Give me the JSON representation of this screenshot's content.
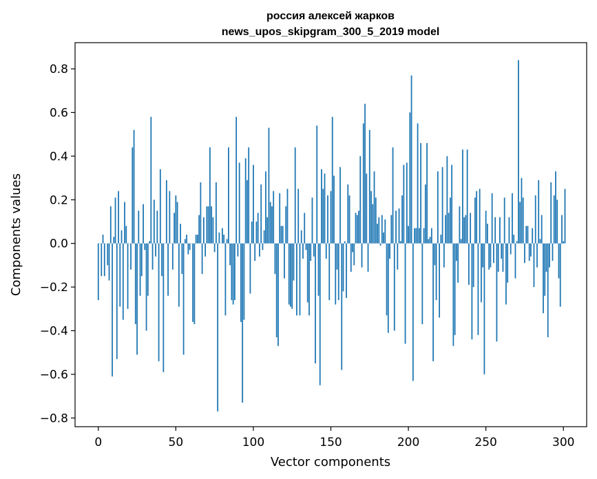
{
  "chart_data": {
    "type": "bar",
    "title_line1": "россия алексей жарков",
    "title_line2": "news_upos_skipgram_300_5_2019 model",
    "xlabel": "Vector components",
    "ylabel": "Components values",
    "xlim": [
      -15,
      315
    ],
    "ylim": [
      -0.84,
      0.92
    ],
    "xticks": [
      0,
      50,
      100,
      150,
      200,
      250,
      300
    ],
    "xtick_labels": [
      "0",
      "50",
      "100",
      "150",
      "200",
      "250",
      "300"
    ],
    "yticks": [
      -0.8,
      -0.6,
      -0.4,
      -0.2,
      0.0,
      0.2,
      0.4,
      0.6,
      0.8
    ],
    "ytick_labels": [
      "−0.8",
      "−0.6",
      "−0.4",
      "−0.2",
      "0.0",
      "0.2",
      "0.4",
      "0.6",
      "0.8"
    ],
    "bar_color": "#1f77b4",
    "values": [
      -0.26,
      0.0,
      -0.15,
      0.04,
      -0.15,
      0.0,
      -0.1,
      -0.17,
      0.17,
      -0.61,
      0.03,
      0.21,
      -0.53,
      0.24,
      -0.29,
      0.06,
      -0.35,
      0.19,
      0.08,
      -0.3,
      0.0,
      -0.12,
      0.44,
      0.52,
      -0.37,
      -0.51,
      0.15,
      -0.24,
      -0.15,
      0.18,
      -0.03,
      -0.4,
      -0.24,
      0.01,
      0.58,
      -0.12,
      0.2,
      -0.06,
      0.15,
      -0.54,
      0.34,
      -0.15,
      -0.59,
      0.0,
      0.29,
      -0.24,
      0.24,
      0.0,
      -0.12,
      0.14,
      0.22,
      0.19,
      -0.29,
      0.09,
      -0.14,
      -0.51,
      0.02,
      0.04,
      -0.05,
      -0.03,
      0.0,
      -0.36,
      -0.37,
      0.04,
      0.04,
      0.13,
      0.28,
      -0.14,
      0.12,
      -0.06,
      0.17,
      0.17,
      0.44,
      0.17,
      0.12,
      -0.04,
      0.28,
      -0.77,
      0.05,
      0.0,
      0.07,
      0.04,
      -0.33,
      0.02,
      0.44,
      -0.1,
      -0.26,
      -0.28,
      -0.26,
      0.58,
      -0.06,
      0.37,
      -0.36,
      -0.73,
      -0.35,
      0.39,
      0.29,
      0.44,
      -0.23,
      0.1,
      0.36,
      -0.08,
      0.1,
      0.14,
      -0.06,
      0.27,
      -0.03,
      0.06,
      0.33,
      0.12,
      0.53,
      0.19,
      0.17,
      0.24,
      -0.14,
      -0.43,
      -0.47,
      0.23,
      0.08,
      0.08,
      -0.16,
      0.17,
      0.25,
      -0.28,
      -0.29,
      -0.3,
      -0.17,
      0.44,
      -0.33,
      0.25,
      -0.33,
      0.06,
      -0.07,
      0.14,
      -0.03,
      -0.27,
      -0.33,
      -0.08,
      0.21,
      -0.06,
      -0.55,
      0.54,
      -0.24,
      -0.65,
      0.34,
      0.25,
      0.32,
      -0.07,
      0.22,
      -0.26,
      0.24,
      0.58,
      0.31,
      -0.28,
      -0.12,
      -0.26,
      0.35,
      -0.58,
      -0.22,
      0.01,
      -0.25,
      0.27,
      0.22,
      -0.13,
      -0.04,
      -0.1,
      0.14,
      0.13,
      0.15,
      0.4,
      -0.11,
      0.55,
      0.64,
      0.32,
      -0.13,
      0.52,
      0.24,
      0.18,
      0.33,
      0.21,
      0.09,
      0.12,
      -0.01,
      0.13,
      0.05,
      0.11,
      -0.33,
      -0.41,
      -0.07,
      0.13,
      0.44,
      -0.4,
      0.15,
      -0.12,
      0.16,
      0.01,
      0.22,
      0.36,
      -0.46,
      0.37,
      0.08,
      0.6,
      0.77,
      -0.63,
      0.07,
      0.07,
      0.55,
      0.07,
      0.46,
      -0.37,
      0.07,
      0.27,
      0.46,
      0.02,
      0.03,
      0.07,
      -0.54,
      -0.1,
      -0.26,
      0.33,
      -0.34,
      0.04,
      0.35,
      -0.11,
      0.13,
      0.4,
      0.14,
      0.21,
      0.36,
      -0.47,
      -0.42,
      -0.08,
      -0.18,
      0.17,
      0.02,
      0.43,
      0.12,
      0.13,
      0.43,
      -0.19,
      0.14,
      -0.44,
      -0.2,
      0.21,
      0.24,
      -0.42,
      0.25,
      -0.27,
      -0.11,
      -0.6,
      0.15,
      0.09,
      -0.12,
      -0.11,
      0.23,
      -0.09,
      0.12,
      -0.45,
      -0.13,
      0.12,
      -0.07,
      -0.13,
      0.21,
      -0.28,
      -0.18,
      0.12,
      -0.05,
      0.23,
      0.04,
      -0.16,
      0.01,
      0.84,
      0.19,
      0.3,
      0.21,
      -0.09,
      0.08,
      0.08,
      -0.08,
      -0.06,
      0.07,
      -0.2,
      0.22,
      -0.11,
      0.29,
      0.02,
      0.13,
      -0.32,
      -0.24,
      -0.13,
      -0.43,
      -0.11,
      0.28,
      -0.08,
      0.22,
      0.33,
      0.2,
      -0.16,
      -0.29,
      0.13,
      0.01,
      0.25
    ]
  }
}
